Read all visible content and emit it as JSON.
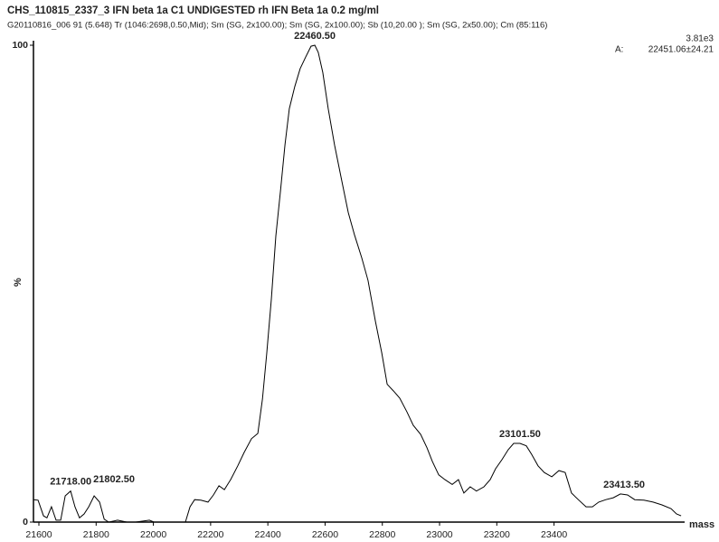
{
  "chart_data": {
    "type": "line",
    "title": "CHS_110815_2337_3 IFN beta 1a C1 UNDIGESTED rh IFN Beta 1a 0.2 mg/ml",
    "subtitle": "G20110816_006  91 (5.648) Tr (1046:2698,0.50,Mid); Sm (SG, 2x100.00); Sm (SG, 2x100.00); Sb (10,20.00 ); Sm (SG, 2x50.00); Cm (85:116)",
    "intensity": "3.81e3",
    "area_label": "A:",
    "area_value": "22451.06±24.21",
    "x_label": "mass",
    "y_label": "%",
    "color": "#000000",
    "xlim": [
      21581,
      23850
    ],
    "ylim": [
      0,
      100
    ],
    "xticks": [
      21600,
      21800,
      22000,
      22200,
      22400,
      22600,
      22800,
      23000,
      23200,
      23400
    ],
    "yticks": [
      0,
      100
    ],
    "x": [
      21581,
      21597,
      21616,
      21628,
      21644,
      21660,
      21676,
      21692,
      21711,
      21726,
      21742,
      21758,
      21774,
      21793,
      21812,
      21828,
      21844,
      21875,
      21907,
      21938,
      21986,
      22002,
      22112,
      22128,
      22144,
      22166,
      22191,
      22210,
      22229,
      22248,
      22270,
      22295,
      22317,
      22343,
      22365,
      22381,
      22396,
      22412,
      22428,
      22444,
      22460,
      22475,
      22494,
      22513,
      22532,
      22551,
      22564,
      22576,
      22592,
      22611,
      22633,
      22655,
      22681,
      22703,
      22728,
      22750,
      22776,
      22798,
      22817,
      22839,
      22861,
      22886,
      22908,
      22934,
      22956,
      22975,
      22997,
      23019,
      23044,
      23066,
      23085,
      23107,
      23129,
      23155,
      23177,
      23196,
      23218,
      23240,
      23259,
      23281,
      23303,
      23322,
      23344,
      23366,
      23392,
      23417,
      23439,
      23461,
      23487,
      23512,
      23534,
      23556,
      23581,
      23607,
      23632,
      23657,
      23682,
      23714,
      23746,
      23777,
      23809,
      23828,
      23844
    ],
    "values": [
      4.7,
      4.6,
      1.3,
      0.9,
      3.2,
      0.4,
      0.4,
      5.5,
      6.5,
      3.2,
      0.9,
      1.7,
      3.2,
      5.5,
      4.2,
      0.6,
      0,
      0.4,
      0,
      0,
      0.4,
      0,
      0,
      3.2,
      4.7,
      4.6,
      4.2,
      5.7,
      7.6,
      6.8,
      8.9,
      11.8,
      14.6,
      17.5,
      18.6,
      25.8,
      35.3,
      46.7,
      60.0,
      69.4,
      79.1,
      86.7,
      91.3,
      95.1,
      97.5,
      99.8,
      100,
      98.5,
      94.3,
      86.7,
      79.1,
      72.5,
      64.9,
      60.2,
      55.4,
      50.7,
      42.1,
      35.5,
      28.9,
      27.5,
      26.0,
      23.1,
      20.3,
      18.4,
      15.6,
      12.7,
      9.9,
      8.9,
      7.9,
      8.9,
      6.1,
      7.4,
      6.5,
      7.4,
      8.9,
      11.2,
      13.1,
      15.2,
      16.5,
      16.5,
      16.0,
      14.2,
      11.8,
      10.4,
      9.5,
      10.8,
      10.4,
      6.1,
      4.6,
      3.2,
      3.2,
      4.2,
      4.7,
      5.1,
      5.9,
      5.7,
      4.7,
      4.6,
      4.2,
      3.6,
      2.8,
      1.7,
      1.3
    ],
    "annotations": [
      {
        "text": "21718.00",
        "x": 21711,
        "y": 6.5
      },
      {
        "text": "21802.50",
        "x": 21793,
        "y": 5.5
      },
      {
        "text": "22460.50",
        "x": 22564,
        "y": 100
      },
      {
        "text": "23101.50",
        "x": 23281,
        "y": 16.5
      },
      {
        "text": "23413.50",
        "x": 23645,
        "y": 5.9
      }
    ]
  }
}
